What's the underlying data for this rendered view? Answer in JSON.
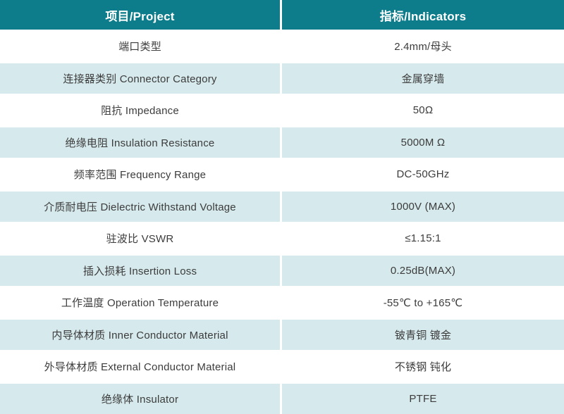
{
  "table": {
    "headers": [
      {
        "label": "项目/Project"
      },
      {
        "label": "指标/Indicators"
      }
    ],
    "rows": [
      {
        "project": "端口类型",
        "indicator": "2.4mm/母头"
      },
      {
        "project": "连接器类别 Connector Category",
        "indicator": "金属穿墙"
      },
      {
        "project": "阻抗 Impedance",
        "indicator": "50Ω"
      },
      {
        "project": "绝缘电阻 Insulation Resistance",
        "indicator": "5000M Ω"
      },
      {
        "project": "频率范围 Frequency Range",
        "indicator": "DC-50GHz"
      },
      {
        "project": "介质耐电压 Dielectric Withstand Voltage",
        "indicator": "1000V (MAX)"
      },
      {
        "project": "驻波比 VSWR",
        "indicator": "≤1.15:1"
      },
      {
        "project": "插入损耗 Insertion Loss",
        "indicator": "0.25dB(MAX)"
      },
      {
        "project": "工作温度 Operation Temperature",
        "indicator": "-55℃ to +165℃"
      },
      {
        "project": "内导体材质 Inner Conductor Material",
        "indicator": "铍青铜 镀金"
      },
      {
        "project": "外导体材质 External Conductor Material",
        "indicator": "不锈钢 钝化"
      },
      {
        "project": "绝缘体 Insulator",
        "indicator": "PTFE"
      }
    ],
    "colors": {
      "header_bg": "#0e7d8b",
      "header_text": "#ffffff",
      "row_bg": "#ffffff",
      "alt_row_bg": "#d6e9ec",
      "divider": "#ffffff",
      "body_text": "#3c3c3c"
    }
  }
}
